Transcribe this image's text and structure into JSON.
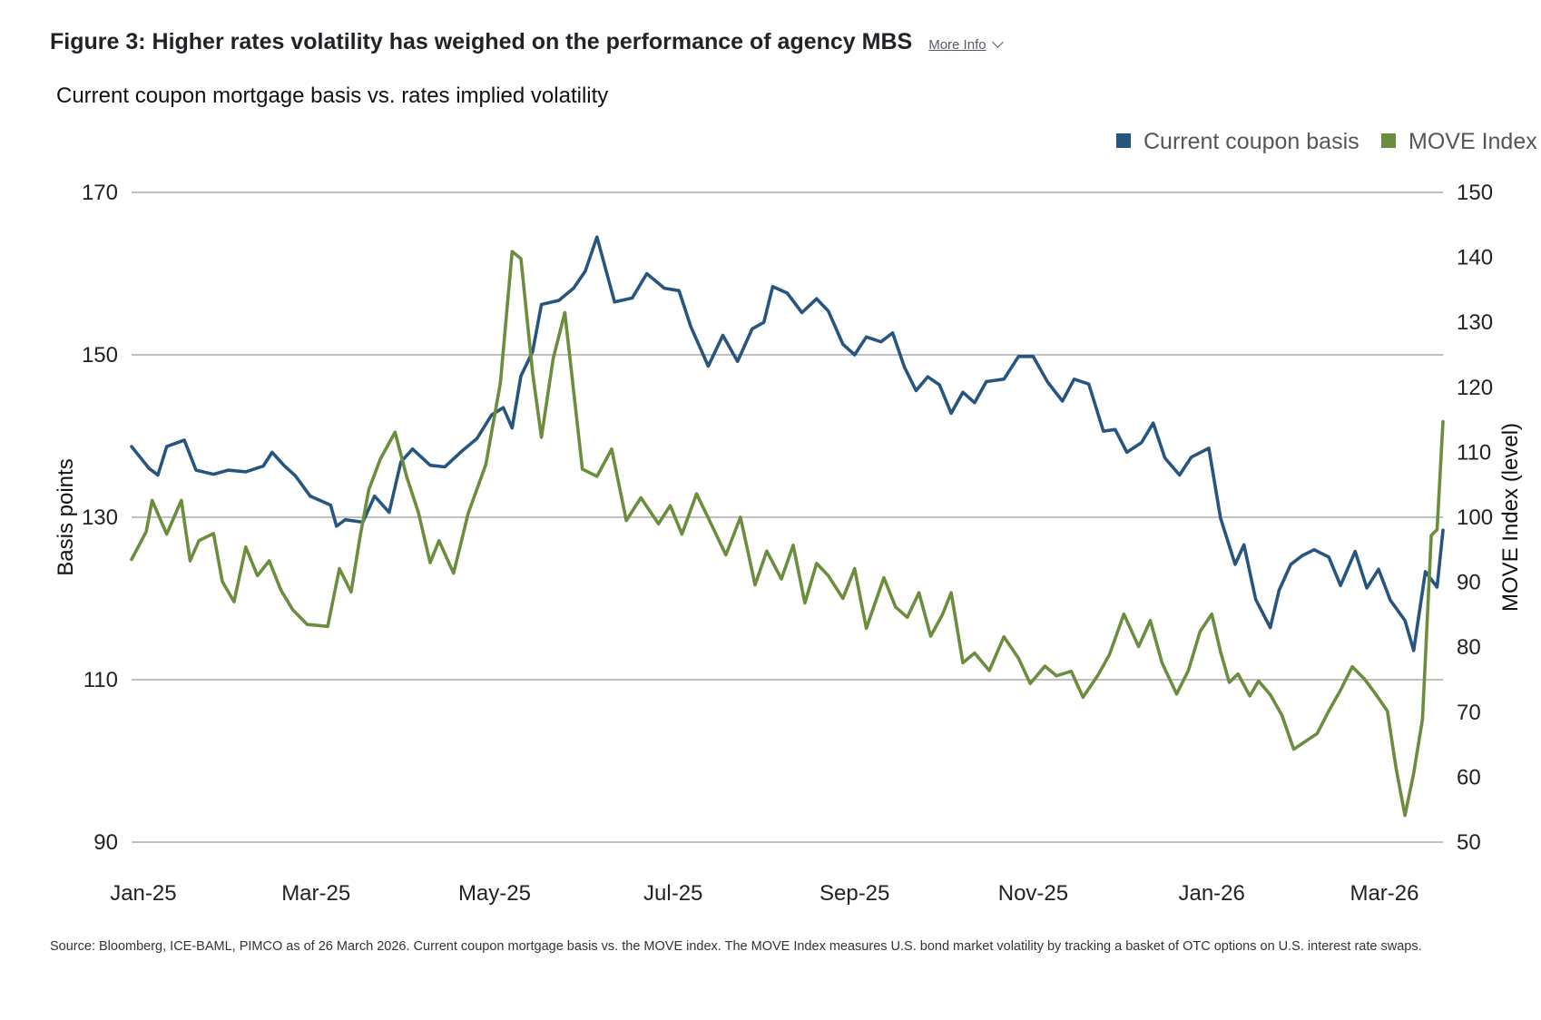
{
  "figure": {
    "title": "Figure 3: Higher rates volatility has weighed on the performance of agency MBS",
    "more_info_label": "More Info",
    "subtitle": "Current coupon mortgage basis vs. rates implied volatility",
    "source": "Source: Bloomberg, ICE-BAML, PIMCO as of 26 March 2026. Current coupon mortgage basis vs. the MOVE index. The MOVE Index measures U.S. bond market volatility by tracking a basket of OTC options on U.S. interest rate swaps."
  },
  "chart_data": {
    "type": "line",
    "title": "Current coupon mortgage basis vs. rates implied volatility",
    "legend_position": "top-right",
    "grid": "horizontal",
    "x_range": [
      "2025-01-02",
      "2026-03-26"
    ],
    "x_tick_labels": [
      "Jan-25",
      "Mar-25",
      "May-25",
      "Jul-25",
      "Sep-25",
      "Nov-25",
      "Jan-26",
      "Mar-26"
    ],
    "x_ticks": [
      "2025-01-06",
      "2025-03-06",
      "2025-05-06",
      "2025-07-06",
      "2025-09-06",
      "2025-11-06",
      "2026-01-06",
      "2026-03-06"
    ],
    "y_left": {
      "label": "Basis points",
      "range": [
        90,
        170
      ],
      "ticks": [
        90,
        110,
        130,
        150,
        170
      ]
    },
    "y_right": {
      "label": "MOVE Index (level)",
      "range": [
        50,
        150
      ],
      "ticks": [
        50,
        60,
        70,
        80,
        90,
        100,
        110,
        120,
        130,
        140,
        150
      ]
    },
    "series": [
      {
        "name": "Current coupon basis",
        "axis": "left",
        "color": "#26557f",
        "points": [
          [
            "2025-01-02",
            138.7
          ],
          [
            "2025-01-08",
            136.0
          ],
          [
            "2025-01-11",
            135.2
          ],
          [
            "2025-01-14",
            138.7
          ],
          [
            "2025-01-20",
            139.5
          ],
          [
            "2025-01-24",
            135.8
          ],
          [
            "2025-01-30",
            135.3
          ],
          [
            "2025-02-04",
            135.8
          ],
          [
            "2025-02-10",
            135.6
          ],
          [
            "2025-02-16",
            136.3
          ],
          [
            "2025-02-19",
            138.0
          ],
          [
            "2025-02-23",
            136.4
          ],
          [
            "2025-02-27",
            135.1
          ],
          [
            "2025-03-04",
            132.6
          ],
          [
            "2025-03-11",
            131.5
          ],
          [
            "2025-03-13",
            128.9
          ],
          [
            "2025-03-16",
            129.7
          ],
          [
            "2025-03-22",
            129.4
          ],
          [
            "2025-03-26",
            132.6
          ],
          [
            "2025-03-31",
            130.6
          ],
          [
            "2025-04-04",
            136.8
          ],
          [
            "2025-04-08",
            138.4
          ],
          [
            "2025-04-14",
            136.4
          ],
          [
            "2025-04-19",
            136.2
          ],
          [
            "2025-04-25",
            138.2
          ],
          [
            "2025-04-30",
            139.7
          ],
          [
            "2025-05-05",
            142.6
          ],
          [
            "2025-05-09",
            143.5
          ],
          [
            "2025-05-12",
            141.0
          ],
          [
            "2025-05-15",
            147.4
          ],
          [
            "2025-05-19",
            150.4
          ],
          [
            "2025-05-22",
            156.2
          ],
          [
            "2025-05-28",
            156.7
          ],
          [
            "2025-06-02",
            158.2
          ],
          [
            "2025-06-06",
            160.3
          ],
          [
            "2025-06-10",
            164.5
          ],
          [
            "2025-06-16",
            156.5
          ],
          [
            "2025-06-22",
            157.0
          ],
          [
            "2025-06-27",
            160.0
          ],
          [
            "2025-07-03",
            158.2
          ],
          [
            "2025-07-08",
            157.9
          ],
          [
            "2025-07-12",
            153.5
          ],
          [
            "2025-07-18",
            148.6
          ],
          [
            "2025-07-23",
            152.4
          ],
          [
            "2025-07-28",
            149.2
          ],
          [
            "2025-08-02",
            153.2
          ],
          [
            "2025-08-06",
            154.0
          ],
          [
            "2025-08-09",
            158.4
          ],
          [
            "2025-08-14",
            157.6
          ],
          [
            "2025-08-19",
            155.2
          ],
          [
            "2025-08-24",
            156.9
          ],
          [
            "2025-08-28",
            155.4
          ],
          [
            "2025-09-02",
            151.3
          ],
          [
            "2025-09-06",
            150.0
          ],
          [
            "2025-09-10",
            152.2
          ],
          [
            "2025-09-15",
            151.6
          ],
          [
            "2025-09-19",
            152.7
          ],
          [
            "2025-09-23",
            148.5
          ],
          [
            "2025-09-27",
            145.6
          ],
          [
            "2025-10-01",
            147.3
          ],
          [
            "2025-10-05",
            146.3
          ],
          [
            "2025-10-09",
            142.8
          ],
          [
            "2025-10-13",
            145.4
          ],
          [
            "2025-10-17",
            144.1
          ],
          [
            "2025-10-21",
            146.7
          ],
          [
            "2025-10-27",
            147.0
          ],
          [
            "2025-11-01",
            149.8
          ],
          [
            "2025-11-06",
            149.8
          ],
          [
            "2025-11-11",
            146.6
          ],
          [
            "2025-11-16",
            144.3
          ],
          [
            "2025-11-20",
            147.0
          ],
          [
            "2025-11-25",
            146.4
          ],
          [
            "2025-11-30",
            140.6
          ],
          [
            "2025-12-04",
            140.8
          ],
          [
            "2025-12-08",
            138.0
          ],
          [
            "2025-12-13",
            139.2
          ],
          [
            "2025-12-17",
            141.6
          ],
          [
            "2025-12-21",
            137.3
          ],
          [
            "2025-12-26",
            135.2
          ],
          [
            "2025-12-30",
            137.4
          ],
          [
            "2026-01-05",
            138.5
          ],
          [
            "2026-01-09",
            129.9
          ],
          [
            "2026-01-14",
            124.2
          ],
          [
            "2026-01-17",
            126.6
          ],
          [
            "2026-01-21",
            119.9
          ],
          [
            "2026-01-26",
            116.4
          ],
          [
            "2026-01-29",
            121.0
          ],
          [
            "2026-02-02",
            124.2
          ],
          [
            "2026-02-06",
            125.3
          ],
          [
            "2026-02-10",
            126.0
          ],
          [
            "2026-02-15",
            125.1
          ],
          [
            "2026-02-19",
            121.6
          ],
          [
            "2026-02-24",
            125.8
          ],
          [
            "2026-02-28",
            121.3
          ],
          [
            "2026-03-04",
            123.6
          ],
          [
            "2026-03-08",
            119.8
          ],
          [
            "2026-03-13",
            117.3
          ],
          [
            "2026-03-16",
            113.6
          ],
          [
            "2026-03-20",
            123.3
          ],
          [
            "2026-03-24",
            121.4
          ],
          [
            "2026-03-26",
            128.4
          ]
        ]
      },
      {
        "name": "MOVE Index",
        "axis": "right",
        "color": "#6b8e3e",
        "points": [
          [
            "2025-01-02",
            93.5
          ],
          [
            "2025-01-07",
            97.8
          ],
          [
            "2025-01-09",
            102.6
          ],
          [
            "2025-01-14",
            97.4
          ],
          [
            "2025-01-19",
            102.6
          ],
          [
            "2025-01-22",
            93.3
          ],
          [
            "2025-01-25",
            96.4
          ],
          [
            "2025-01-30",
            97.5
          ],
          [
            "2025-02-02",
            90.1
          ],
          [
            "2025-02-06",
            87.0
          ],
          [
            "2025-02-10",
            95.4
          ],
          [
            "2025-02-14",
            91.0
          ],
          [
            "2025-02-18",
            93.3
          ],
          [
            "2025-02-22",
            88.8
          ],
          [
            "2025-02-26",
            85.8
          ],
          [
            "2025-03-03",
            83.5
          ],
          [
            "2025-03-10",
            83.2
          ],
          [
            "2025-03-14",
            92.1
          ],
          [
            "2025-03-18",
            88.5
          ],
          [
            "2025-03-21",
            96.9
          ],
          [
            "2025-03-24",
            104.2
          ],
          [
            "2025-03-28",
            109.0
          ],
          [
            "2025-04-02",
            113.1
          ],
          [
            "2025-04-06",
            106.2
          ],
          [
            "2025-04-10",
            100.7
          ],
          [
            "2025-04-14",
            93.0
          ],
          [
            "2025-04-17",
            96.4
          ],
          [
            "2025-04-22",
            91.4
          ],
          [
            "2025-04-27",
            100.6
          ],
          [
            "2025-05-03",
            108.1
          ],
          [
            "2025-05-08",
            120.7
          ],
          [
            "2025-05-12",
            140.9
          ],
          [
            "2025-05-15",
            139.8
          ],
          [
            "2025-05-19",
            122.2
          ],
          [
            "2025-05-22",
            112.3
          ],
          [
            "2025-05-26",
            124.4
          ],
          [
            "2025-05-30",
            131.5
          ],
          [
            "2025-06-05",
            107.4
          ],
          [
            "2025-06-10",
            106.3
          ],
          [
            "2025-06-15",
            110.5
          ],
          [
            "2025-06-20",
            99.5
          ],
          [
            "2025-06-25",
            103.0
          ],
          [
            "2025-07-01",
            99.0
          ],
          [
            "2025-07-05",
            101.8
          ],
          [
            "2025-07-09",
            97.4
          ],
          [
            "2025-07-14",
            103.6
          ],
          [
            "2025-07-18",
            99.9
          ],
          [
            "2025-07-24",
            94.2
          ],
          [
            "2025-07-29",
            100.0
          ],
          [
            "2025-08-03",
            89.6
          ],
          [
            "2025-08-07",
            94.8
          ],
          [
            "2025-08-12",
            90.5
          ],
          [
            "2025-08-16",
            95.7
          ],
          [
            "2025-08-20",
            86.8
          ],
          [
            "2025-08-24",
            92.9
          ],
          [
            "2025-08-28",
            91.0
          ],
          [
            "2025-09-02",
            87.5
          ],
          [
            "2025-09-06",
            92.1
          ],
          [
            "2025-09-10",
            82.9
          ],
          [
            "2025-09-16",
            90.7
          ],
          [
            "2025-09-20",
            86.2
          ],
          [
            "2025-09-24",
            84.6
          ],
          [
            "2025-09-28",
            88.4
          ],
          [
            "2025-10-02",
            81.7
          ],
          [
            "2025-10-06",
            85.0
          ],
          [
            "2025-10-09",
            88.4
          ],
          [
            "2025-10-13",
            77.6
          ],
          [
            "2025-10-17",
            79.1
          ],
          [
            "2025-10-22",
            76.4
          ],
          [
            "2025-10-27",
            81.6
          ],
          [
            "2025-11-01",
            78.3
          ],
          [
            "2025-11-05",
            74.4
          ],
          [
            "2025-11-10",
            77.1
          ],
          [
            "2025-11-14",
            75.6
          ],
          [
            "2025-11-19",
            76.3
          ],
          [
            "2025-11-23",
            72.3
          ],
          [
            "2025-11-28",
            75.6
          ],
          [
            "2025-12-02",
            78.8
          ],
          [
            "2025-12-07",
            85.1
          ],
          [
            "2025-12-12",
            80.1
          ],
          [
            "2025-12-16",
            84.1
          ],
          [
            "2025-12-20",
            77.6
          ],
          [
            "2025-12-25",
            72.8
          ],
          [
            "2025-12-29",
            76.4
          ],
          [
            "2026-01-02",
            82.4
          ],
          [
            "2026-01-06",
            85.1
          ],
          [
            "2026-01-09",
            79.3
          ],
          [
            "2026-01-12",
            74.6
          ],
          [
            "2026-01-15",
            75.9
          ],
          [
            "2026-01-19",
            72.5
          ],
          [
            "2026-01-22",
            74.8
          ],
          [
            "2026-01-26",
            72.7
          ],
          [
            "2026-01-30",
            69.5
          ],
          [
            "2026-02-03",
            64.3
          ],
          [
            "2026-02-07",
            65.5
          ],
          [
            "2026-02-11",
            66.7
          ],
          [
            "2026-02-15",
            70.2
          ],
          [
            "2026-02-19",
            73.4
          ],
          [
            "2026-02-23",
            77.0
          ],
          [
            "2026-02-27",
            75.2
          ],
          [
            "2026-03-03",
            72.8
          ],
          [
            "2026-03-07",
            70.2
          ],
          [
            "2026-03-10",
            61.3
          ],
          [
            "2026-03-13",
            54.1
          ],
          [
            "2026-03-16",
            60.6
          ],
          [
            "2026-03-19",
            68.9
          ],
          [
            "2026-03-22",
            97.2
          ],
          [
            "2026-03-24",
            98.1
          ],
          [
            "2026-03-26",
            114.7
          ]
        ]
      }
    ]
  }
}
